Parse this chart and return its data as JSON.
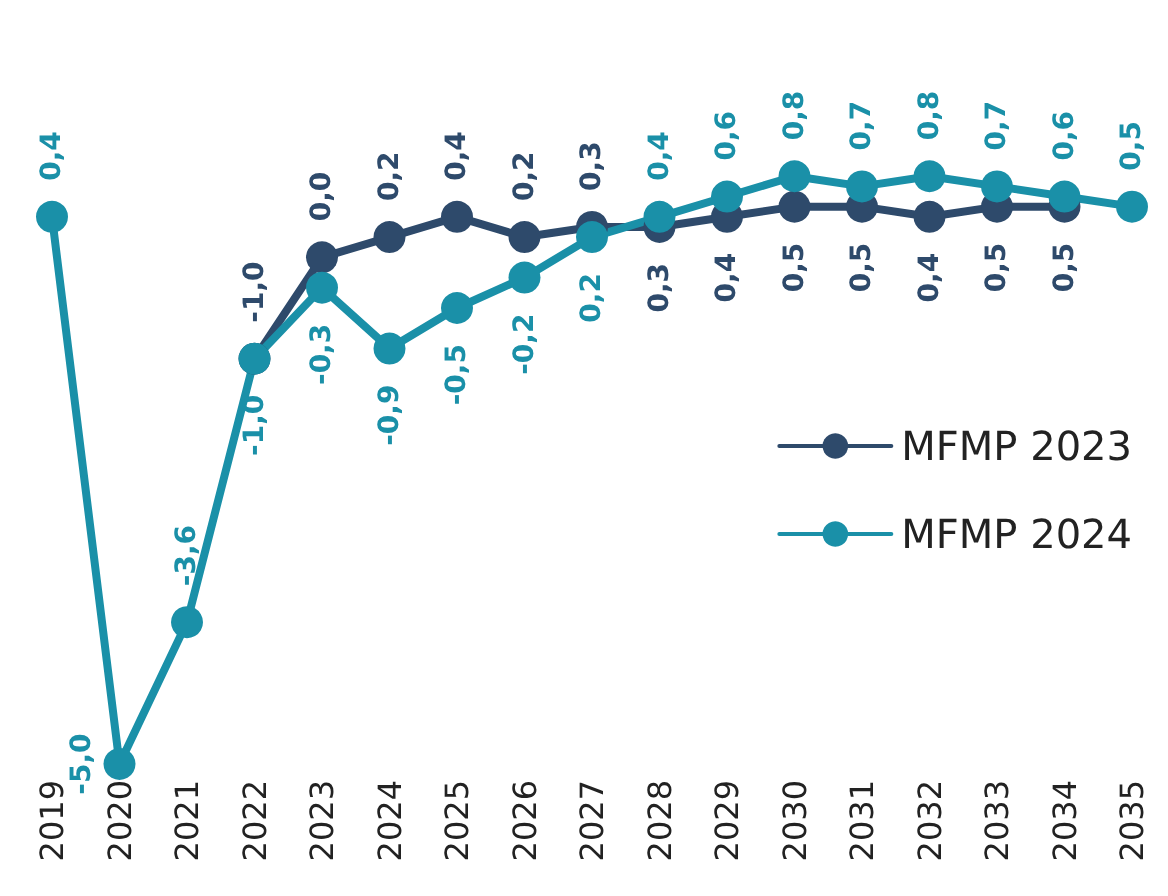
{
  "chart_data": {
    "type": "line",
    "categories": [
      "2019",
      "2020",
      "2021",
      "2022",
      "2023",
      "2024",
      "2025",
      "2026",
      "2027",
      "2028",
      "2029",
      "2030",
      "2031",
      "2032",
      "2033",
      "2034",
      "2035"
    ],
    "series": [
      {
        "name": "MFMP 2023",
        "color": "#2e4a6b",
        "values": [
          null,
          null,
          null,
          -1.0,
          0.0,
          0.2,
          0.4,
          0.2,
          0.3,
          0.3,
          0.4,
          0.5,
          0.5,
          0.4,
          0.5,
          0.5,
          null
        ],
        "value_labels": [
          null,
          null,
          null,
          "-1,0",
          "0,0",
          "0,2",
          "0,4",
          "0,2",
          "0,3",
          "0,3",
          "0,4",
          "0,5",
          "0,5",
          "0,4",
          "0,5",
          "0,5",
          null
        ]
      },
      {
        "name": "MFMP 2024",
        "color": "#1a90a8",
        "values": [
          0.4,
          -5.0,
          -3.6,
          -1.0,
          -0.3,
          -0.9,
          -0.5,
          -0.2,
          0.2,
          0.4,
          0.6,
          0.8,
          0.7,
          0.8,
          0.7,
          0.6,
          0.5
        ],
        "value_labels": [
          "0,4",
          "-5,0",
          "-3,6",
          "-1,0",
          "-0,3",
          "-0,9",
          "-0,5",
          "-0,2",
          "0,2",
          "0,4",
          "0,6",
          "0,8",
          "0,7",
          "0,8",
          "0,7",
          "0,6",
          "0,5"
        ]
      }
    ],
    "marker": "circle",
    "line_style": "solid",
    "grid": false,
    "legend": "right"
  }
}
